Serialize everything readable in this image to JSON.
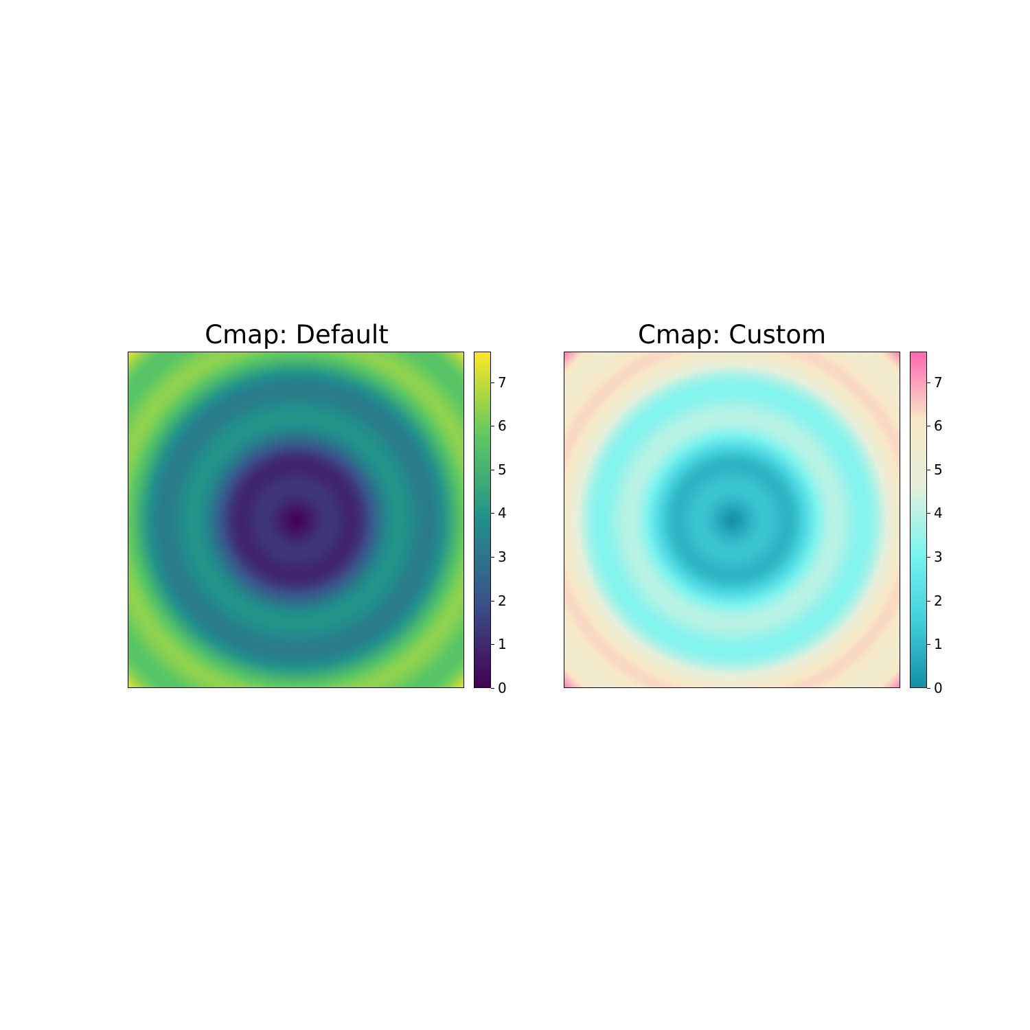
{
  "chart_data": [
    {
      "type": "heatmap",
      "title": "Cmap: Default",
      "colormap": "viridis",
      "colors": [
        "#440154",
        "#3b528b",
        "#21918c",
        "#5ec962",
        "#fde725"
      ],
      "value_range": [
        0,
        7.7
      ],
      "colorbar": {
        "ticks": [
          0,
          1,
          2,
          3,
          4,
          5,
          6,
          7
        ],
        "tick_labels": [
          "0",
          "1",
          "2",
          "3",
          "4",
          "5",
          "6",
          "7"
        ]
      },
      "pattern": "concentric rings centered, value = r + sin(r)-like ripple; minimum 0 at center, maximum ~7.7 at corners",
      "xlabel": "",
      "ylabel": "",
      "axes_ticks": false
    },
    {
      "type": "heatmap",
      "title": "Cmap: Custom",
      "colormap": "custom",
      "colors": [
        "#1590a6",
        "#43d0dc",
        "#7bf4f0",
        "#e6f0dc",
        "#f8e8c6",
        "#ff69b4"
      ],
      "value_range": [
        0,
        7.7
      ],
      "colorbar": {
        "ticks": [
          0,
          1,
          2,
          3,
          4,
          5,
          6,
          7
        ],
        "tick_labels": [
          "0",
          "1",
          "2",
          "3",
          "4",
          "5",
          "6",
          "7"
        ]
      },
      "pattern": "concentric rings centered, same data as left panel",
      "xlabel": "",
      "ylabel": "",
      "axes_ticks": false
    }
  ]
}
